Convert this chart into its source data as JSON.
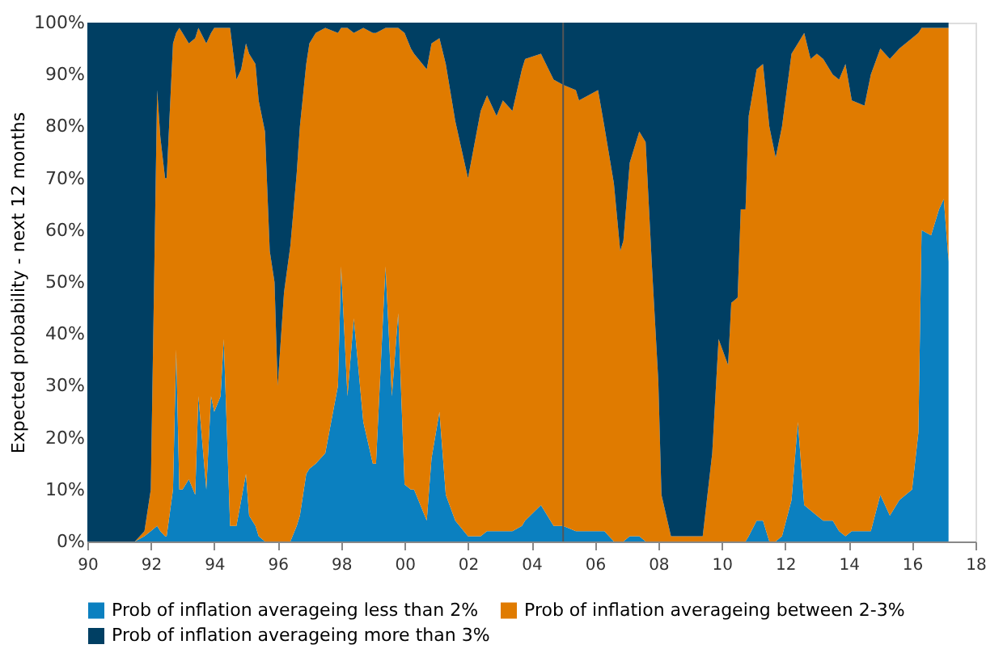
{
  "chart_data": {
    "type": "area",
    "stacked": true,
    "ylabel": "Expected probability - next 12 months",
    "x": [
      1990.0,
      1991.5,
      1991.8,
      1992.0,
      1992.2,
      1992.3,
      1992.45,
      1992.5,
      1992.7,
      1992.8,
      1992.9,
      1993.0,
      1993.2,
      1993.4,
      1993.5,
      1993.75,
      1993.9,
      1994.0,
      1994.2,
      1994.3,
      1994.5,
      1994.7,
      1994.85,
      1995.0,
      1995.1,
      1995.3,
      1995.4,
      1995.6,
      1995.75,
      1995.9,
      1996.0,
      1996.2,
      1996.4,
      1996.6,
      1996.7,
      1996.9,
      1997.0,
      1997.2,
      1997.5,
      1997.9,
      1998.0,
      1998.2,
      1998.4,
      1998.7,
      1999.0,
      1999.1,
      1999.4,
      1999.6,
      1999.8,
      2000.0,
      2000.2,
      2000.3,
      2000.7,
      2000.85,
      2001.1,
      2001.3,
      2001.6,
      2002.0,
      2002.4,
      2002.6,
      2002.9,
      2003.1,
      2003.4,
      2003.7,
      2003.8,
      2004.3,
      2004.7,
      2005.0,
      2005.4,
      2005.5,
      2006.1,
      2006.3,
      2006.6,
      2006.8,
      2006.9,
      2007.1,
      2007.4,
      2007.6,
      2007.8,
      2008.0,
      2008.1,
      2008.4,
      2009.4,
      2009.7,
      2009.9,
      2010.2,
      2010.3,
      2010.5,
      2010.6,
      2010.75,
      2010.85,
      2011.1,
      2011.3,
      2011.5,
      2011.7,
      2011.9,
      2012.2,
      2012.4,
      2012.6,
      2012.8,
      2013.0,
      2013.2,
      2013.5,
      2013.7,
      2013.9,
      2014.1,
      2014.5,
      2014.7,
      2015.0,
      2015.3,
      2015.6,
      2016.0,
      2016.2,
      2016.3,
      2016.6,
      2016.85,
      2017.0,
      2017.15
    ],
    "series": [
      {
        "name": "Prob of inflation averageing less than 2%",
        "color": "#0b80c0",
        "values": [
          0,
          0,
          1,
          2,
          3,
          2,
          1,
          1,
          10,
          37,
          10,
          10,
          12,
          9,
          28,
          10,
          28,
          25,
          28,
          39,
          3,
          3,
          8,
          13,
          5,
          3,
          1,
          0,
          0,
          0,
          0,
          0,
          0,
          3,
          5,
          13,
          14,
          15,
          17,
          30,
          53,
          28,
          43,
          23,
          15,
          15,
          53,
          28,
          44,
          11,
          10,
          10,
          4,
          16,
          25,
          9,
          4,
          1,
          1,
          2,
          2,
          2,
          2,
          3,
          4,
          7,
          3,
          3,
          2,
          2,
          2,
          2,
          0,
          0,
          0,
          1,
          1,
          0,
          0,
          0,
          0,
          0,
          0,
          0,
          0,
          0,
          0,
          0,
          0,
          0,
          1,
          4,
          4,
          0,
          0,
          1,
          8,
          23,
          7,
          6,
          5,
          4,
          4,
          2,
          1,
          2,
          2,
          2,
          9,
          5,
          8,
          10,
          21,
          60,
          59,
          64,
          66,
          54
        ]
      },
      {
        "name": "Prob of inflation averageing between 2-3%",
        "color": "#e07b00",
        "values": [
          0,
          0,
          1,
          8,
          84,
          76,
          69,
          69,
          86,
          61,
          89,
          88,
          84,
          88,
          71,
          86,
          70,
          74,
          71,
          60,
          96,
          86,
          83,
          83,
          89,
          89,
          84,
          79,
          56,
          50,
          30,
          48,
          57,
          68,
          75,
          79,
          82,
          83,
          82,
          68,
          46,
          71,
          55,
          76,
          83,
          83,
          46,
          71,
          55,
          87,
          85,
          84,
          87,
          80,
          72,
          83,
          77,
          69,
          82,
          84,
          80,
          83,
          81,
          88,
          89,
          87,
          86,
          85,
          85,
          83,
          85,
          78,
          69,
          56,
          58,
          72,
          78,
          77,
          53,
          31,
          9,
          1,
          1,
          17,
          39,
          34,
          46,
          47,
          64,
          64,
          81,
          87,
          88,
          80,
          74,
          79,
          86,
          73,
          91,
          87,
          89,
          89,
          86,
          87,
          91,
          83,
          82,
          88,
          86,
          88,
          87,
          87,
          77,
          39,
          40,
          35,
          33,
          45
        ]
      },
      {
        "name": "Prob of inflation averageing more than 3%",
        "color": "#003f63",
        "values": [
          100,
          100,
          98,
          90,
          13,
          22,
          30,
          30,
          4,
          2,
          1,
          2,
          4,
          3,
          1,
          4,
          2,
          1,
          1,
          1,
          1,
          11,
          9,
          4,
          6,
          8,
          15,
          21,
          44,
          50,
          70,
          52,
          43,
          29,
          20,
          8,
          4,
          2,
          1,
          2,
          1,
          1,
          2,
          1,
          2,
          2,
          1,
          1,
          1,
          2,
          5,
          6,
          9,
          4,
          3,
          8,
          19,
          30,
          17,
          14,
          18,
          15,
          17,
          9,
          7,
          6,
          11,
          12,
          13,
          15,
          13,
          20,
          31,
          44,
          42,
          27,
          21,
          23,
          47,
          69,
          91,
          99,
          99,
          83,
          61,
          66,
          54,
          53,
          36,
          36,
          18,
          9,
          8,
          20,
          26,
          20,
          6,
          4,
          2,
          7,
          6,
          7,
          10,
          11,
          8,
          15,
          16,
          10,
          5,
          7,
          5,
          3,
          2,
          1,
          1,
          1,
          1,
          1
        ]
      }
    ],
    "xlim": [
      1990,
      2018
    ],
    "xticks": [
      {
        "value": 1990,
        "label": "90"
      },
      {
        "value": 1992,
        "label": "92"
      },
      {
        "value": 1994,
        "label": "94"
      },
      {
        "value": 1996,
        "label": "96"
      },
      {
        "value": 1998,
        "label": "98"
      },
      {
        "value": 2000,
        "label": "00"
      },
      {
        "value": 2002,
        "label": "02"
      },
      {
        "value": 2004,
        "label": "04"
      },
      {
        "value": 2006,
        "label": "06"
      },
      {
        "value": 2008,
        "label": "08"
      },
      {
        "value": 2010,
        "label": "10"
      },
      {
        "value": 2012,
        "label": "12"
      },
      {
        "value": 2014,
        "label": "14"
      },
      {
        "value": 2016,
        "label": "16"
      },
      {
        "value": 2018,
        "label": "18"
      }
    ],
    "ylim": [
      0,
      100
    ],
    "yticks": [
      {
        "value": 0,
        "label": "0%"
      },
      {
        "value": 10,
        "label": "10%"
      },
      {
        "value": 20,
        "label": "20%"
      },
      {
        "value": 30,
        "label": "30%"
      },
      {
        "value": 40,
        "label": "40%"
      },
      {
        "value": 50,
        "label": "50%"
      },
      {
        "value": 60,
        "label": "60%"
      },
      {
        "value": 70,
        "label": "70%"
      },
      {
        "value": 80,
        "label": "80%"
      },
      {
        "value": 90,
        "label": "90%"
      },
      {
        "value": 100,
        "label": "100%"
      }
    ],
    "ref_lines": [
      {
        "axis": "x",
        "value": 2005,
        "color": "#555555"
      }
    ],
    "grid": false,
    "legend": "bottom"
  }
}
